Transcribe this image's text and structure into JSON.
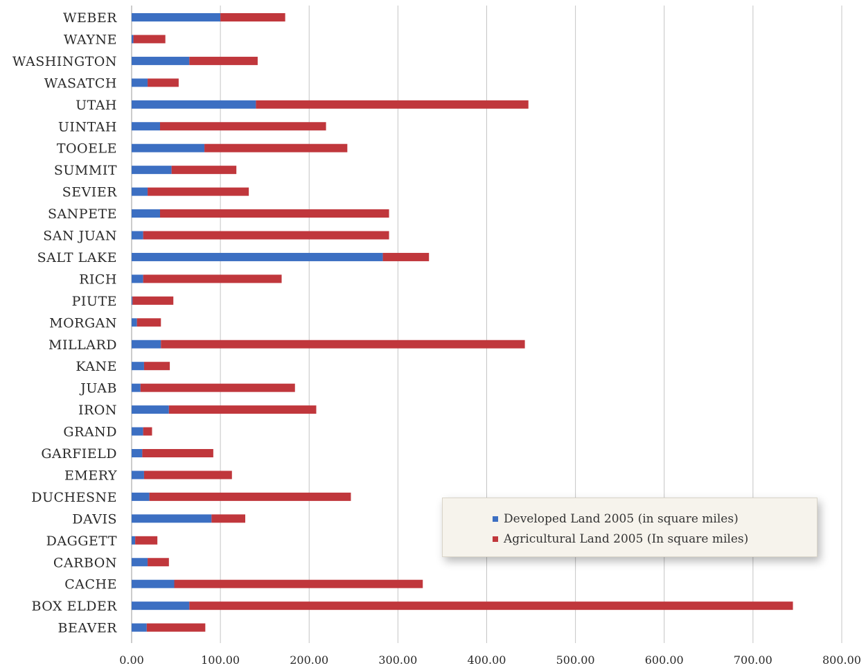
{
  "chart_data": {
    "type": "bar",
    "orientation": "horizontal",
    "stacked": true,
    "categories": [
      "WEBER",
      "WAYNE",
      "WASHINGTON",
      "WASATCH",
      "UTAH",
      "UINTAH",
      "TOOELE",
      "SUMMIT",
      "SEVIER",
      "SANPETE",
      "SAN JUAN",
      "SALT LAKE",
      "RICH",
      "PIUTE",
      "MORGAN",
      "MILLARD",
      "KANE",
      "JUAB",
      "IRON",
      "GRAND",
      "GARFIELD",
      "EMERY",
      "DUCHESNE",
      "DAVIS",
      "DAGGETT",
      "CARBON",
      "CACHE",
      "BOX ELDER",
      "BEAVER"
    ],
    "series": [
      {
        "name": "Developed Land 2005 (in square miles)",
        "color": "#3c6fc2",
        "values": [
          100,
          2,
          65,
          18,
          140,
          32,
          82,
          45,
          18,
          32,
          13,
          283,
          13,
          1,
          6,
          33,
          14,
          10,
          42,
          13,
          12,
          14,
          20,
          90,
          4,
          18,
          48,
          65,
          17
        ]
      },
      {
        "name": "Agricultural Land 2005 (In square miles)",
        "color": "#c0373c",
        "values": [
          73,
          36,
          77,
          35,
          307,
          187,
          161,
          73,
          114,
          258,
          277,
          52,
          156,
          46,
          27,
          410,
          29,
          174,
          166,
          10,
          80,
          99,
          227,
          38,
          25,
          24,
          280,
          680,
          66
        ]
      }
    ],
    "xlim": [
      0,
      800
    ],
    "xticks": [
      "0.00",
      "100.00",
      "200.00",
      "300.00",
      "400.00",
      "500.00",
      "600.00",
      "700.00",
      "800.00"
    ],
    "grid": "vertical",
    "legend_position": "bottom-right",
    "title": "",
    "xlabel": "",
    "ylabel": ""
  },
  "legend": {
    "items": [
      {
        "label": "Developed Land 2005 (in square miles)",
        "color": "#3c6fc2"
      },
      {
        "label": "Agricultural Land 2005 (In square miles)",
        "color": "#c0373c"
      }
    ]
  }
}
